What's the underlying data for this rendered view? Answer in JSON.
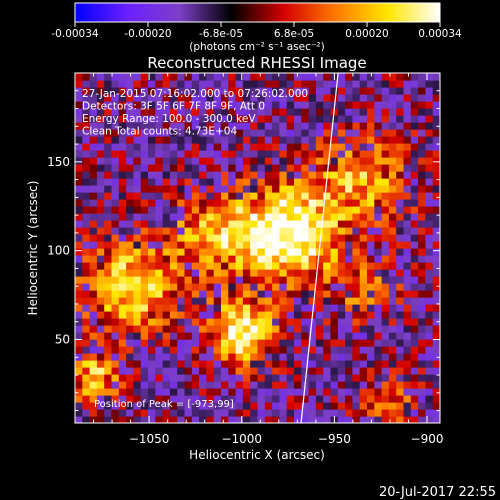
{
  "chart_data": {
    "type": "heatmap",
    "title": "Reconstructed RHESSI Image",
    "colorbar": {
      "ticks": [
        "-0.00034",
        "-0.00020",
        "-6.8e-05",
        "6.8e-05",
        "0.00020",
        "0.00034"
      ],
      "range": [
        -0.00034,
        0.00034
      ],
      "unit_label": "(photons cm⁻² s⁻¹ asec⁻²)",
      "colors": [
        "#0000ff",
        "#6a1fff",
        "#7d3fc8",
        "#000000",
        "#d40000",
        "#ff7a00",
        "#ffe600",
        "#ffffff"
      ]
    },
    "info_lines": [
      "27-Jan-2015 07:16:02.000 to 07:26:02.000",
      "Detectors: 3F 5F 6F 7F 8F 9F, Att 0",
      "Energy Range: 100.0 - 300.0 keV",
      "Clean     Total counts: 4.73E+04"
    ],
    "peak_label": "Position of Peak = [-973,99]",
    "xlabel": "Heliocentric X (arcsec)",
    "ylabel": "Heliocentric Y (arcsec)",
    "xlim": [
      -1090,
      -893
    ],
    "ylim": [
      3,
      200
    ],
    "xticks": [
      -1050,
      -1000,
      -950,
      -900
    ],
    "xtick_labels": [
      "−1050",
      "−1000",
      "−950",
      "−900"
    ],
    "yticks": [
      50,
      100,
      150
    ],
    "ytick_labels": [
      "50",
      "100",
      "150"
    ],
    "limb_line": [
      [
        -968,
        3
      ],
      [
        -948,
        200
      ]
    ],
    "sources": [
      {
        "x": -975,
        "y": 110,
        "sigma": 26,
        "amp": 1.0
      },
      {
        "x": -1000,
        "y": 55,
        "sigma": 18,
        "amp": 0.9
      },
      {
        "x": -1060,
        "y": 80,
        "sigma": 25,
        "amp": 0.75
      },
      {
        "x": -1015,
        "y": 110,
        "sigma": 22,
        "amp": 0.6
      },
      {
        "x": -935,
        "y": 140,
        "sigma": 25,
        "amp": 0.55
      },
      {
        "x": -935,
        "y": 80,
        "sigma": 20,
        "amp": 0.35
      },
      {
        "x": -1080,
        "y": 30,
        "sigma": 15,
        "amp": 0.6
      },
      {
        "x": -920,
        "y": 15,
        "sigma": 15,
        "amp": 0.45
      }
    ]
  },
  "timestamp": "20-Jul-2017 22:55"
}
